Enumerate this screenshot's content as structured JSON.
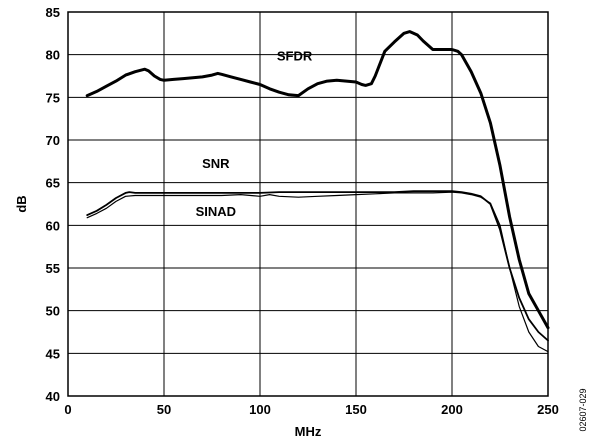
{
  "chart_data": {
    "type": "line",
    "xlabel": "MHz",
    "ylabel": "dB",
    "xlim": [
      0,
      250
    ],
    "ylim": [
      40,
      85
    ],
    "x_ticks": [
      0,
      50,
      100,
      150,
      200,
      250
    ],
    "y_ticks": [
      40,
      45,
      50,
      55,
      60,
      65,
      70,
      75,
      80,
      85
    ],
    "grid": true,
    "figure_id": "02607-029",
    "series": [
      {
        "name": "SFDR",
        "color": "#000000",
        "weight": "thick",
        "x": [
          10,
          15,
          20,
          25,
          30,
          35,
          40,
          42,
          45,
          48,
          50,
          55,
          60,
          65,
          70,
          75,
          78,
          80,
          85,
          90,
          95,
          100,
          105,
          110,
          115,
          120,
          125,
          130,
          135,
          140,
          145,
          150,
          153,
          155,
          158,
          160,
          165,
          170,
          175,
          178,
          182,
          185,
          190,
          195,
          200,
          203,
          205,
          210,
          215,
          220,
          225,
          230,
          235,
          240,
          245,
          250
        ],
        "values": [
          75.2,
          75.7,
          76.3,
          76.9,
          77.6,
          78.0,
          78.3,
          78.1,
          77.5,
          77.1,
          77.0,
          77.1,
          77.2,
          77.3,
          77.4,
          77.6,
          77.8,
          77.7,
          77.4,
          77.1,
          76.8,
          76.5,
          76.0,
          75.6,
          75.3,
          75.2,
          76.0,
          76.6,
          76.9,
          77.0,
          76.9,
          76.8,
          76.5,
          76.4,
          76.6,
          77.5,
          80.4,
          81.5,
          82.5,
          82.7,
          82.3,
          81.6,
          80.6,
          80.6,
          80.6,
          80.4,
          80.0,
          78.0,
          75.5,
          72.0,
          67.0,
          61.0,
          56.0,
          52.0,
          50.0,
          48.0
        ]
      },
      {
        "name": "SNR",
        "color": "#000000",
        "weight": "medium",
        "x": [
          10,
          15,
          20,
          25,
          30,
          32,
          35,
          40,
          50,
          60,
          70,
          80,
          90,
          100,
          110,
          120,
          130,
          140,
          150,
          160,
          170,
          180,
          190,
          200,
          205,
          210,
          215,
          220,
          225,
          230,
          235,
          240,
          245,
          250
        ],
        "values": [
          61.2,
          61.7,
          62.4,
          63.2,
          63.8,
          63.9,
          63.8,
          63.8,
          63.8,
          63.8,
          63.8,
          63.8,
          63.8,
          63.8,
          63.9,
          63.9,
          63.9,
          63.9,
          63.9,
          63.9,
          63.9,
          64.0,
          64.0,
          64.0,
          63.9,
          63.7,
          63.4,
          62.5,
          59.5,
          55.0,
          51.5,
          49.0,
          47.5,
          46.5
        ]
      },
      {
        "name": "SINAD",
        "color": "#000000",
        "weight": "thin",
        "x": [
          10,
          15,
          20,
          25,
          30,
          35,
          40,
          50,
          60,
          70,
          80,
          90,
          100,
          105,
          110,
          120,
          130,
          140,
          150,
          160,
          170,
          180,
          190,
          200,
          205,
          210,
          215,
          220,
          225,
          230,
          235,
          240,
          245,
          250
        ],
        "values": [
          60.9,
          61.4,
          62.0,
          62.8,
          63.4,
          63.5,
          63.5,
          63.5,
          63.5,
          63.5,
          63.5,
          63.6,
          63.4,
          63.6,
          63.4,
          63.3,
          63.4,
          63.5,
          63.6,
          63.7,
          63.8,
          63.8,
          63.8,
          63.9,
          63.8,
          63.6,
          63.3,
          62.6,
          60.0,
          55.0,
          50.5,
          47.5,
          45.8,
          45.2
        ]
      }
    ],
    "annotations": [
      {
        "text": "SFDR",
        "x": 118,
        "y": 79.3
      },
      {
        "text": "SNR",
        "x": 77,
        "y": 66.7
      },
      {
        "text": "SINAD",
        "x": 77,
        "y": 61.1
      }
    ]
  }
}
